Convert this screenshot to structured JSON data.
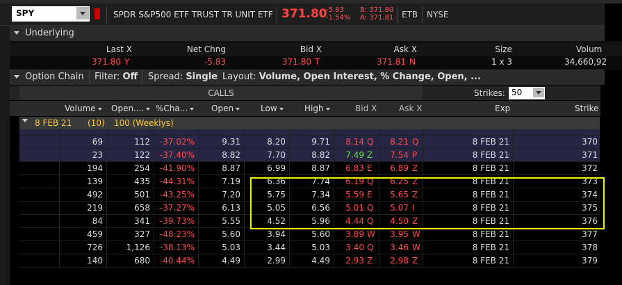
{
  "symbol": "SPY",
  "description": "SPDR S&P500 ETF TRUST TR UNIT ETF",
  "last_price": "371.80",
  "change": "-5.83",
  "change_pct": "-1.54%",
  "bid_top": "B: 371.80",
  "ask_top": "A: 371.81",
  "tags": [
    "ETB",
    "NYSE"
  ],
  "underlying": {
    "title": "Underlying",
    "headers": [
      "Last X",
      "Net Chng",
      "Bid X",
      "Ask X",
      "Size",
      "Volum"
    ],
    "last": "371.80",
    "last_x": "Y",
    "net_chng": "-5.83",
    "bid": "371.80",
    "bid_x": "T",
    "ask": "371.81",
    "ask_x": "N",
    "size": "1 x 3",
    "volume": "34,660,92"
  },
  "option_chain": {
    "title": "Option Chain",
    "filter_label": "Filter:",
    "filter_value": "Off",
    "spread_label": "Spread:",
    "spread_value": "Single",
    "layout_label": "Layout:",
    "layout_value": "Volume, Open Interest, % Change, Open, ...",
    "calls_label": "CALLS",
    "strikes_label": "Strikes:",
    "strikes_value": "50",
    "columns": [
      "Volume",
      "Open....",
      "%Cha...",
      "Open",
      "Low",
      "High",
      "Bid X",
      "Ask X",
      "Exp",
      "Strike"
    ],
    "expiration": {
      "label": "8 FEB 21",
      "count": "(10)",
      "desc": "100 (Weeklys)"
    }
  },
  "rows": [
    {
      "vol": "",
      "oi": "",
      "pct": "",
      "open": "",
      "low": "",
      "high": "",
      "bid": "",
      "bx": "",
      "ask": "",
      "ax": "",
      "exp": "",
      "strike": "",
      "cut": true
    },
    {
      "vol": "69",
      "oi": "112",
      "pct": "-37.02%",
      "open": "9.31",
      "low": "8.20",
      "high": "9.71",
      "bid": "8.14",
      "bx": "Q",
      "ask": "8.21",
      "ax": "Q",
      "exp": "8 FEB 21",
      "strike": "370",
      "itm": true
    },
    {
      "vol": "23",
      "oi": "122",
      "pct": "-37.40%",
      "open": "8.82",
      "low": "7.70",
      "high": "8.82",
      "bid": "7.49",
      "bx": "Z",
      "ask": "7.54",
      "ax": "P",
      "exp": "8 FEB 21",
      "strike": "371",
      "itm": true,
      "bidgreen": true
    },
    {
      "vol": "194",
      "oi": "254",
      "pct": "-41.90%",
      "open": "8.87",
      "low": "6.99",
      "high": "8.87",
      "bid": "6.83",
      "bx": "E",
      "ask": "6.89",
      "ax": "Z",
      "exp": "8 FEB 21",
      "strike": "372"
    },
    {
      "vol": "139",
      "oi": "435",
      "pct": "-44.31%",
      "open": "7.19",
      "low": "6.36",
      "high": "7.74",
      "bid": "6.19",
      "bx": "Q",
      "ask": "6.25",
      "ax": "Z",
      "exp": "8 FEB 21",
      "strike": "373"
    },
    {
      "vol": "492",
      "oi": "501",
      "pct": "-43.25%",
      "open": "7.20",
      "low": "5.75",
      "high": "7.34",
      "bid": "5.59",
      "bx": "E",
      "ask": "5.65",
      "ax": "Z",
      "exp": "8 FEB 21",
      "strike": "374"
    },
    {
      "vol": "219",
      "oi": "658",
      "pct": "-37.27%",
      "open": "6.13",
      "low": "5.05",
      "high": "6.56",
      "bid": "5.01",
      "bx": "Q",
      "ask": "5.07",
      "ax": "I",
      "exp": "8 FEB 21",
      "strike": "375"
    },
    {
      "vol": "84",
      "oi": "341",
      "pct": "-39.73%",
      "open": "5.55",
      "low": "4.52",
      "high": "5.96",
      "bid": "4.44",
      "bx": "Q",
      "ask": "4.50",
      "ax": "Z",
      "exp": "8 FEB 21",
      "strike": "376"
    },
    {
      "vol": "459",
      "oi": "327",
      "pct": "-48.23%",
      "open": "5.60",
      "low": "3.94",
      "high": "5.60",
      "bid": "3.89",
      "bx": "W",
      "ask": "3.95",
      "ax": "W",
      "exp": "8 FEB 21",
      "strike": "377"
    },
    {
      "vol": "726",
      "oi": "1,126",
      "pct": "-38.13%",
      "open": "5.03",
      "low": "3.44",
      "high": "5.03",
      "bid": "3.40",
      "bx": "Q",
      "ask": "3.46",
      "ax": "W",
      "exp": "8 FEB 21",
      "strike": "378"
    },
    {
      "vol": "140",
      "oi": "680",
      "pct": "-40.44%",
      "open": "4.49",
      "low": "2.99",
      "high": "4.49",
      "bid": "2.93",
      "bx": "Z",
      "ask": "2.98",
      "ax": "Z",
      "exp": "8 FEB 21",
      "strike": "379"
    }
  ],
  "colors": {
    "price_red": "#ff4a4a",
    "itm_bg": "#2a2a4a",
    "highlight": "#f0f000"
  }
}
